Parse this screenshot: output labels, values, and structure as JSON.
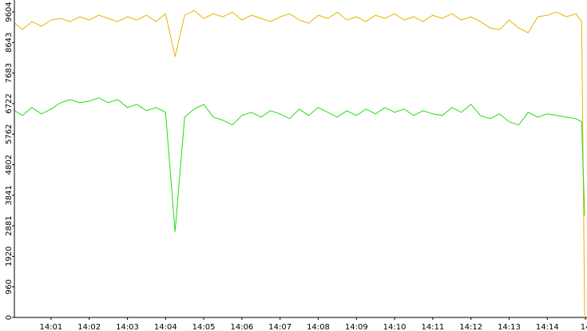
{
  "chart_data": {
    "type": "line",
    "x": [
      0.05,
      0.25,
      0.5,
      0.75,
      1,
      1.25,
      1.5,
      1.75,
      2,
      2.25,
      2.5,
      2.75,
      3,
      3.25,
      3.5,
      3.75,
      4,
      4.25,
      4.5,
      4.75,
      5,
      5.25,
      5.5,
      5.75,
      6,
      6.25,
      6.5,
      6.75,
      7,
      7.25,
      7.5,
      7.75,
      8,
      8.25,
      8.5,
      8.75,
      9,
      9.25,
      9.5,
      9.75,
      10,
      10.25,
      10.5,
      10.75,
      11,
      11.25,
      11.5,
      11.75,
      12,
      12.25,
      12.5,
      12.75,
      13,
      13.25,
      13.5,
      13.75,
      14,
      14.25,
      14.5,
      14.75,
      14.9,
      14.98
    ],
    "series": [
      {
        "color": "#e8b400",
        "values": [
          9250,
          9050,
          9300,
          9150,
          9350,
          9400,
          9300,
          9450,
          9350,
          9500,
          9400,
          9300,
          9450,
          9350,
          9500,
          9300,
          9550,
          8200,
          9500,
          9650,
          9400,
          9550,
          9450,
          9600,
          9350,
          9500,
          9400,
          9300,
          9450,
          9550,
          9350,
          9250,
          9500,
          9400,
          9600,
          9350,
          9450,
          9300,
          9500,
          9400,
          9550,
          9350,
          9450,
          9300,
          9500,
          9400,
          9550,
          9350,
          9450,
          9300,
          9100,
          9050,
          9350,
          9100,
          8950,
          9450,
          9500,
          9600,
          9450,
          9550,
          9300,
          0
        ]
      },
      {
        "color": "#22dd11",
        "values": [
          6500,
          6350,
          6600,
          6400,
          6550,
          6750,
          6850,
          6750,
          6800,
          6900,
          6750,
          6850,
          6600,
          6700,
          6500,
          6600,
          6450,
          2700,
          6300,
          6550,
          6700,
          6300,
          6200,
          6050,
          6350,
          6450,
          6300,
          6500,
          6400,
          6250,
          6550,
          6350,
          6600,
          6450,
          6300,
          6500,
          6350,
          6550,
          6400,
          6600,
          6450,
          6550,
          6350,
          6500,
          6400,
          6350,
          6600,
          6450,
          6700,
          6350,
          6250,
          6400,
          6150,
          6050,
          6450,
          6300,
          6400,
          6350,
          6300,
          6250,
          6150,
          3200
        ]
      }
    ],
    "xlim": [
      0.04,
      15.04
    ],
    "xticks": [
      {
        "value": 1,
        "label": "14:01"
      },
      {
        "value": 2,
        "label": "14:02"
      },
      {
        "value": 3,
        "label": "14:03"
      },
      {
        "value": 4,
        "label": "14:04"
      },
      {
        "value": 5,
        "label": "14:05"
      },
      {
        "value": 6,
        "label": "14:06"
      },
      {
        "value": 7,
        "label": "14:07"
      },
      {
        "value": 8,
        "label": "14:08"
      },
      {
        "value": 9,
        "label": "14:09"
      },
      {
        "value": 10,
        "label": "14:10"
      },
      {
        "value": 11,
        "label": "14:11"
      },
      {
        "value": 12,
        "label": "14:12"
      },
      {
        "value": 13,
        "label": "14:13"
      },
      {
        "value": 14,
        "label": "14:14"
      },
      {
        "value": 15,
        "label": "14"
      }
    ],
    "ylim": [
      0,
      9604
    ],
    "yticks": [
      0,
      960,
      1920,
      2881,
      3841,
      4802,
      5762,
      6722,
      7683,
      8643,
      9604
    ]
  }
}
